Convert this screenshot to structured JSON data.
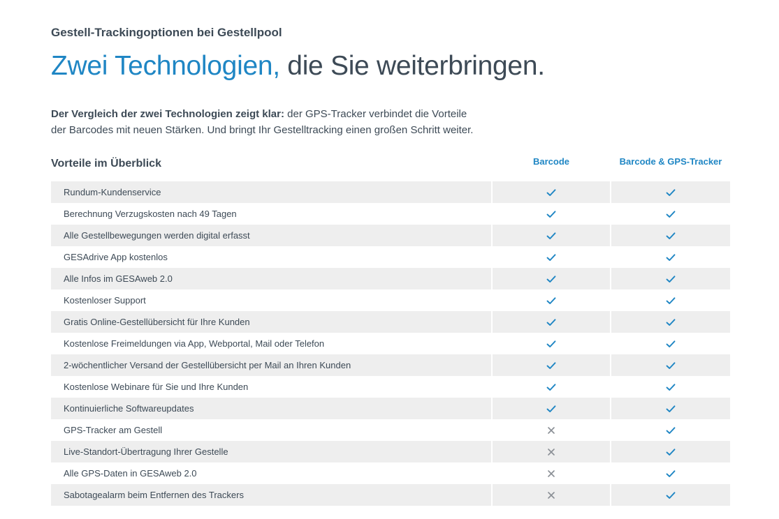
{
  "header": {
    "eyebrow": "Gestell-Trackingoptionen bei Gestellpool",
    "headline_accent": "Zwei Technologien,",
    "headline_rest": " die Sie weiterbringen.",
    "intro_bold": "Der Vergleich der zwei Technologien zeigt klar:",
    "intro_line1_rest": " der GPS-Tracker verbindet die Vorteile",
    "intro_line2": "der Barcodes mit neuen Stärken. Und bringt Ihr Gestelltracking einen großen Schritt weiter."
  },
  "table": {
    "title": "Vorteile im Überblick",
    "col_a": "Barcode",
    "col_b": "Barcode & GPS-Tracker",
    "rows": [
      {
        "label": "Rundum-Kundenservice",
        "a": "check",
        "b": "check"
      },
      {
        "label": "Berechnung Verzugskosten nach 49 Tagen",
        "a": "check",
        "b": "check"
      },
      {
        "label": "Alle Gestellbewegungen werden digital erfasst",
        "a": "check",
        "b": "check"
      },
      {
        "label": "GESAdrive App kostenlos",
        "a": "check",
        "b": "check"
      },
      {
        "label": "Alle Infos im GESAweb 2.0",
        "a": "check",
        "b": "check"
      },
      {
        "label": "Kostenloser Support",
        "a": "check",
        "b": "check"
      },
      {
        "label": "Gratis Online-Gestellübersicht für Ihre Kunden",
        "a": "check",
        "b": "check"
      },
      {
        "label": "Kostenlose Freimeldungen via App, Webportal, Mail oder Telefon",
        "a": "check",
        "b": "check"
      },
      {
        "label": "2-wöchentlicher Versand der Gestellübersicht per Mail an Ihren Kunden",
        "a": "check",
        "b": "check"
      },
      {
        "label": "Kostenlose Webinare für Sie und Ihre Kunden",
        "a": "check",
        "b": "check"
      },
      {
        "label": "Kontinuierliche Softwareupdates",
        "a": "check",
        "b": "check"
      },
      {
        "label": "GPS-Tracker am Gestell",
        "a": "cross",
        "b": "check"
      },
      {
        "label": "Live-Standort-Übertragung Ihrer Gestelle",
        "a": "cross",
        "b": "check"
      },
      {
        "label": "Alle GPS-Daten in GESAweb 2.0",
        "a": "cross",
        "b": "check"
      },
      {
        "label": "Sabotagealarm beim Entfernen des Trackers",
        "a": "cross",
        "b": "check"
      }
    ]
  },
  "colors": {
    "accent": "#1f86c4",
    "text": "#3d4a56",
    "row_shade": "#eeeeee",
    "cross": "#8a8f95"
  }
}
